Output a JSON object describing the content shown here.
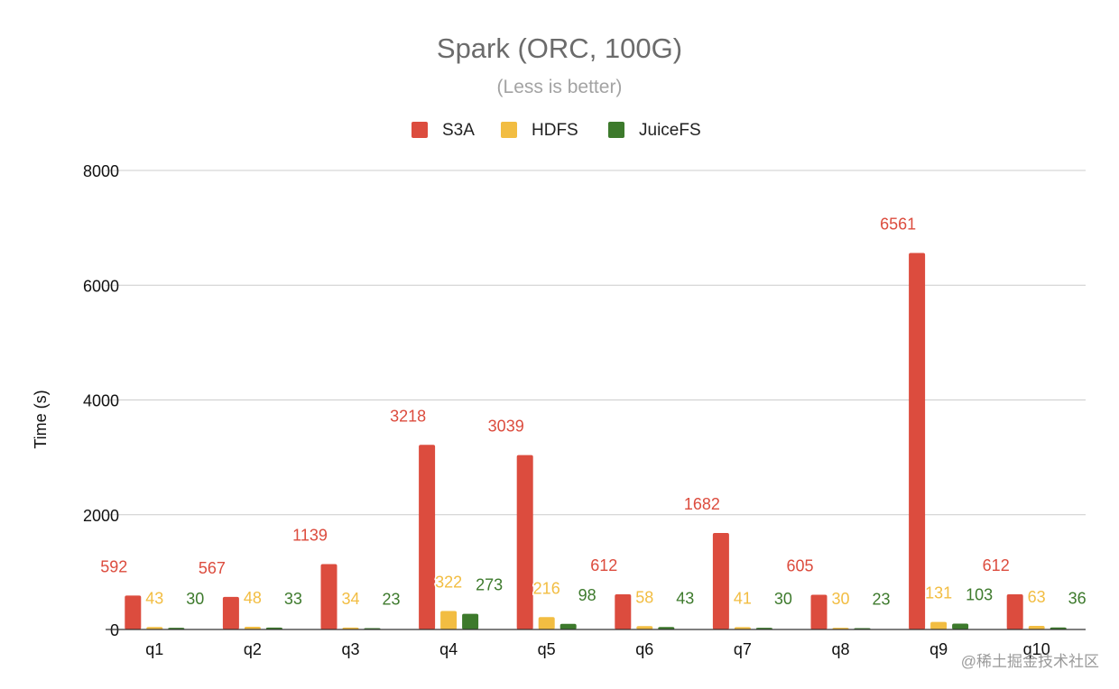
{
  "chart_data": {
    "type": "bar",
    "title": "Spark (ORC, 100G)",
    "subtitle": "(Less is better)",
    "xlabel": "",
    "ylabel": "Time (s)",
    "ylim": [
      0,
      8000
    ],
    "yticks": [
      0,
      2000,
      4000,
      6000,
      8000
    ],
    "grid": true,
    "legend_position": "top-center",
    "categories": [
      "q1",
      "q2",
      "q3",
      "q4",
      "q5",
      "q6",
      "q7",
      "q8",
      "q9",
      "q10"
    ],
    "series": [
      {
        "name": "S3A",
        "color": "#dc4c3e",
        "values": [
          592,
          567,
          1139,
          3218,
          3039,
          612,
          1682,
          605,
          6561,
          612
        ]
      },
      {
        "name": "HDFS",
        "color": "#f2bd42",
        "values": [
          43,
          48,
          34,
          322,
          216,
          58,
          41,
          30,
          131,
          63
        ]
      },
      {
        "name": "JuiceFS",
        "color": "#3d7a2c",
        "values": [
          30,
          33,
          23,
          273,
          98,
          43,
          30,
          23,
          103,
          36
        ]
      }
    ]
  },
  "watermark": "@稀土掘金技术社区"
}
